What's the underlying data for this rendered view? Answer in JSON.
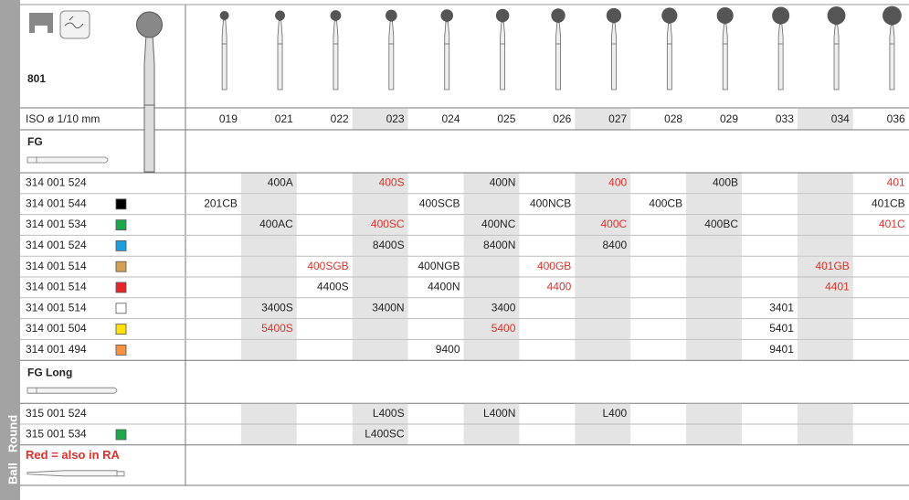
{
  "side_label": [
    "Ball",
    "Round"
  ],
  "product": "801",
  "iso_label": "ISO ø 1/10 mm",
  "columns": [
    "019",
    "021",
    "022",
    "023",
    "024",
    "025",
    "026",
    "027",
    "028",
    "029",
    "033",
    "034",
    "036"
  ],
  "sections": [
    {
      "title": "FG",
      "rows": [
        {
          "code": "314 001 524",
          "cells": [
            null,
            "400A",
            null,
            {
              "text": "400S",
              "red": true
            },
            null,
            "400N",
            null,
            {
              "text": "400",
              "red": true
            },
            null,
            "400B",
            null,
            null,
            {
              "text": "401",
              "red": true
            }
          ]
        },
        {
          "code": "314 001 544",
          "swatch": "#000000",
          "cells": [
            "201CB",
            null,
            null,
            null,
            "400SCB",
            null,
            "400NCB",
            null,
            "400CB",
            null,
            null,
            null,
            "401CB"
          ]
        },
        {
          "code": "314 001 534",
          "swatch": "#1aa84a",
          "cells": [
            null,
            "400AC",
            null,
            {
              "text": "400SC",
              "red": true
            },
            null,
            "400NC",
            null,
            {
              "text": "400C",
              "red": true
            },
            null,
            "400BC",
            null,
            null,
            {
              "text": "401C",
              "red": true
            }
          ]
        },
        {
          "code": "314 001 524",
          "swatch": "#1a9fe0",
          "cells": [
            null,
            null,
            null,
            "8400S",
            null,
            "8400N",
            null,
            "8400",
            null,
            null,
            null,
            null,
            null
          ]
        },
        {
          "code": "314 001 514",
          "swatch": "#d4a052",
          "cells": [
            null,
            null,
            {
              "text": "400SGB",
              "red": true
            },
            null,
            "400NGB",
            null,
            {
              "text": "400GB",
              "red": true
            },
            null,
            null,
            null,
            null,
            {
              "text": "401GB",
              "red": true
            },
            null
          ]
        },
        {
          "code": "314 001 514",
          "swatch": "#e8232a",
          "cells": [
            null,
            null,
            "4400S",
            null,
            "4400N",
            null,
            {
              "text": "4400",
              "red": true
            },
            null,
            null,
            null,
            null,
            {
              "text": "4401",
              "red": true
            },
            null
          ]
        },
        {
          "code": "314 001 514",
          "swatch": "#ffffff",
          "cells": [
            null,
            "3400S",
            null,
            "3400N",
            null,
            "3400",
            null,
            null,
            null,
            null,
            "3401",
            null,
            null
          ]
        },
        {
          "code": "314 001 504",
          "swatch": "#ffe000",
          "cells": [
            null,
            {
              "text": "5400S",
              "red": true
            },
            null,
            null,
            null,
            {
              "text": "5400",
              "red": true
            },
            null,
            null,
            null,
            null,
            "5401",
            null,
            null
          ]
        },
        {
          "code": "314 001 494",
          "swatch": "#f7913d",
          "cells": [
            null,
            null,
            null,
            null,
            "9400",
            null,
            null,
            null,
            null,
            null,
            "9401",
            null,
            null
          ]
        }
      ]
    },
    {
      "title": "FG Long",
      "rows": [
        {
          "code": "315 001 524",
          "cells": [
            null,
            null,
            null,
            "L400S",
            null,
            "L400N",
            null,
            "L400",
            null,
            null,
            null,
            null,
            null
          ]
        },
        {
          "code": "315 001 534",
          "swatch": "#1aa84a",
          "cells": [
            null,
            null,
            null,
            "L400SC",
            null,
            null,
            null,
            null,
            null,
            null,
            null,
            null,
            null
          ]
        }
      ]
    }
  ],
  "note": "Red = also in RA"
}
